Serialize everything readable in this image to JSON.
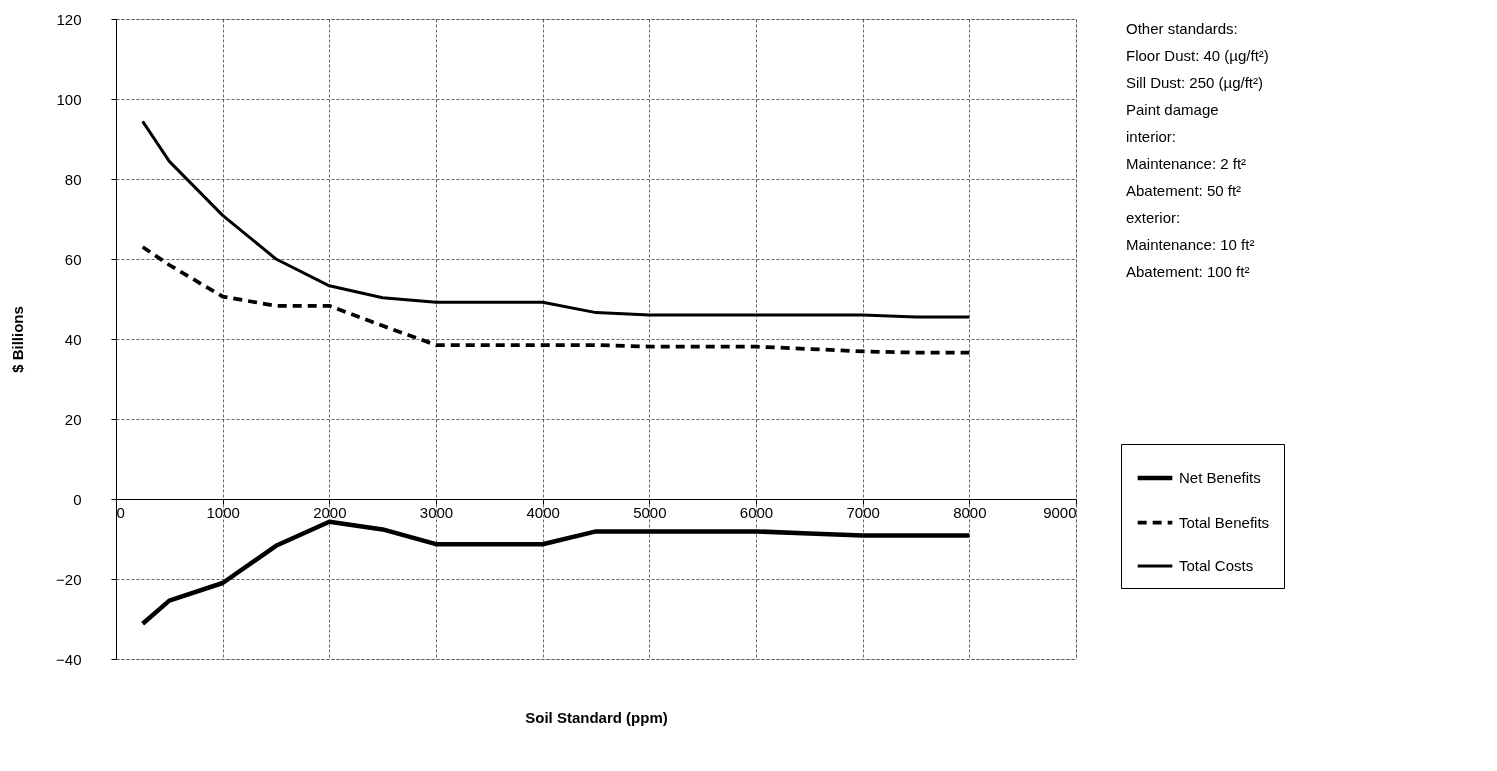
{
  "chart_data": {
    "type": "line",
    "xlabel": "Soil Standard (ppm)",
    "ylabel": "$ Billions",
    "x": [
      250,
      500,
      1000,
      1500,
      2000,
      2500,
      3000,
      3500,
      4000,
      4500,
      5000,
      5500,
      6000,
      6500,
      7000,
      7500,
      8000
    ],
    "series": [
      {
        "name": "Net Benefits",
        "color": "#000000",
        "line_style": "solid",
        "values": [
          -31.2,
          -25.4,
          -21,
          -11.7,
          -5.7,
          -7.6,
          -11.3,
          -11.3,
          -11.3,
          -8.1,
          -8.1,
          -8.1,
          -8.1,
          -8.6,
          -9.1,
          -9.1,
          -9.1
        ]
      },
      {
        "name": "Total Benefits",
        "color": "#000000",
        "line_style": "dashed",
        "values": [
          63,
          58.5,
          50.6,
          48.3,
          48.3,
          43.3,
          38.5,
          38.5,
          38.5,
          38.5,
          38.1,
          38.1,
          38.1,
          37.5,
          36.9,
          36.6,
          36.6
        ]
      },
      {
        "name": "Total Costs",
        "color": "#000000",
        "line_style": "solid",
        "values": [
          94.4,
          84.4,
          70.9,
          60,
          53.3,
          50.3,
          49.2,
          49.2,
          49.2,
          46.6,
          46,
          46,
          46,
          46,
          46,
          45.5,
          45.5
        ]
      }
    ],
    "xlim": [
      0,
      9000
    ],
    "xticks": [
      0,
      1000,
      2000,
      3000,
      4000,
      5000,
      6000,
      7000,
      8000,
      9000
    ],
    "ylim": [
      -40,
      120
    ],
    "yticks": [
      -40,
      -20,
      0,
      20,
      40,
      60,
      80,
      100,
      120
    ],
    "grid": true,
    "legend": "right",
    "marker": "none",
    "annotations": [
      "Other standards:",
      "Floor Dust: 40   (µg/ft²)",
      "Sill Dust: 250   (µg/ft²)",
      "Paint damage",
      "interior:",
      "Maintenance: 2 ft²",
      "Abatement: 50 ft²",
      "exterior:",
      "Maintenance: 10 ft²",
      "Abatement: 100 ft²"
    ]
  }
}
